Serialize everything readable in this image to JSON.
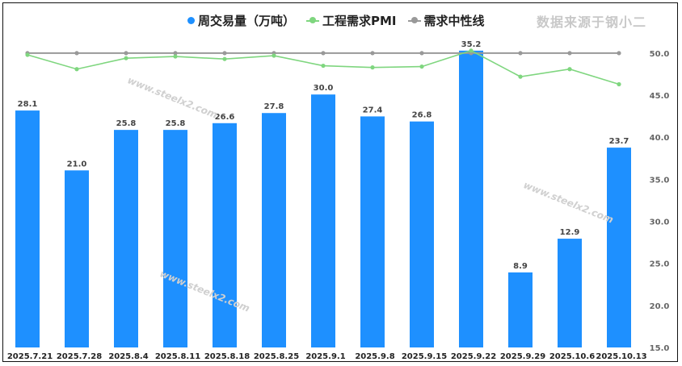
{
  "legend": {
    "items": [
      {
        "label": "周交易量（万吨）",
        "color": "#1e90ff",
        "style": "dot"
      },
      {
        "label": "工程需求PMI",
        "color": "#7fd67f",
        "style": "line"
      },
      {
        "label": "需求中性线",
        "color": "#999999",
        "style": "line"
      }
    ]
  },
  "source_text": "数据来源于钢小二",
  "watermark_text": "www.steelx2.com",
  "chart_data": {
    "type": "bar",
    "categories": [
      "2025.7.21",
      "2025.7.28",
      "2025.8.4",
      "2025.8.11",
      "2025.8.18",
      "2025.8.25",
      "2025.9.1",
      "2025.9.8",
      "2025.9.15",
      "2025.9.22",
      "2025.9.29",
      "2025.10.6",
      "2025.10.13"
    ],
    "series": [
      {
        "name": "周交易量（万吨）",
        "type": "bar",
        "axis": "left",
        "color": "#1e90ff",
        "values": [
          28.1,
          21.0,
          25.8,
          25.8,
          26.6,
          27.8,
          30.0,
          27.4,
          26.8,
          35.2,
          8.9,
          12.9,
          23.7
        ],
        "labels": [
          "28.1",
          "21.0",
          "25.8",
          "25.8",
          "26.6",
          "27.8",
          "30.0",
          "27.4",
          "26.8",
          "35.2",
          "8.9",
          "12.9",
          "23.7"
        ]
      },
      {
        "name": "工程需求PMI",
        "type": "line",
        "axis": "right",
        "color": "#7fd67f",
        "values": [
          49.8,
          48.1,
          49.4,
          49.6,
          49.3,
          49.7,
          48.5,
          48.3,
          48.4,
          50.3,
          47.2,
          48.1,
          46.3
        ]
      },
      {
        "name": "需求中性线",
        "type": "line",
        "axis": "right",
        "color": "#999999",
        "values": [
          50,
          50,
          50,
          50,
          50,
          50,
          50,
          50,
          50,
          50,
          50,
          50,
          50
        ]
      }
    ],
    "y_left_range": [
      0,
      37.0
    ],
    "y_right": {
      "range": [
        15,
        52.1
      ],
      "ticks": [
        "15.0",
        "20.0",
        "25.0",
        "30.0",
        "35.0",
        "40.0",
        "45.0",
        "50.0"
      ]
    },
    "grid": false,
    "legend_position": "top"
  }
}
